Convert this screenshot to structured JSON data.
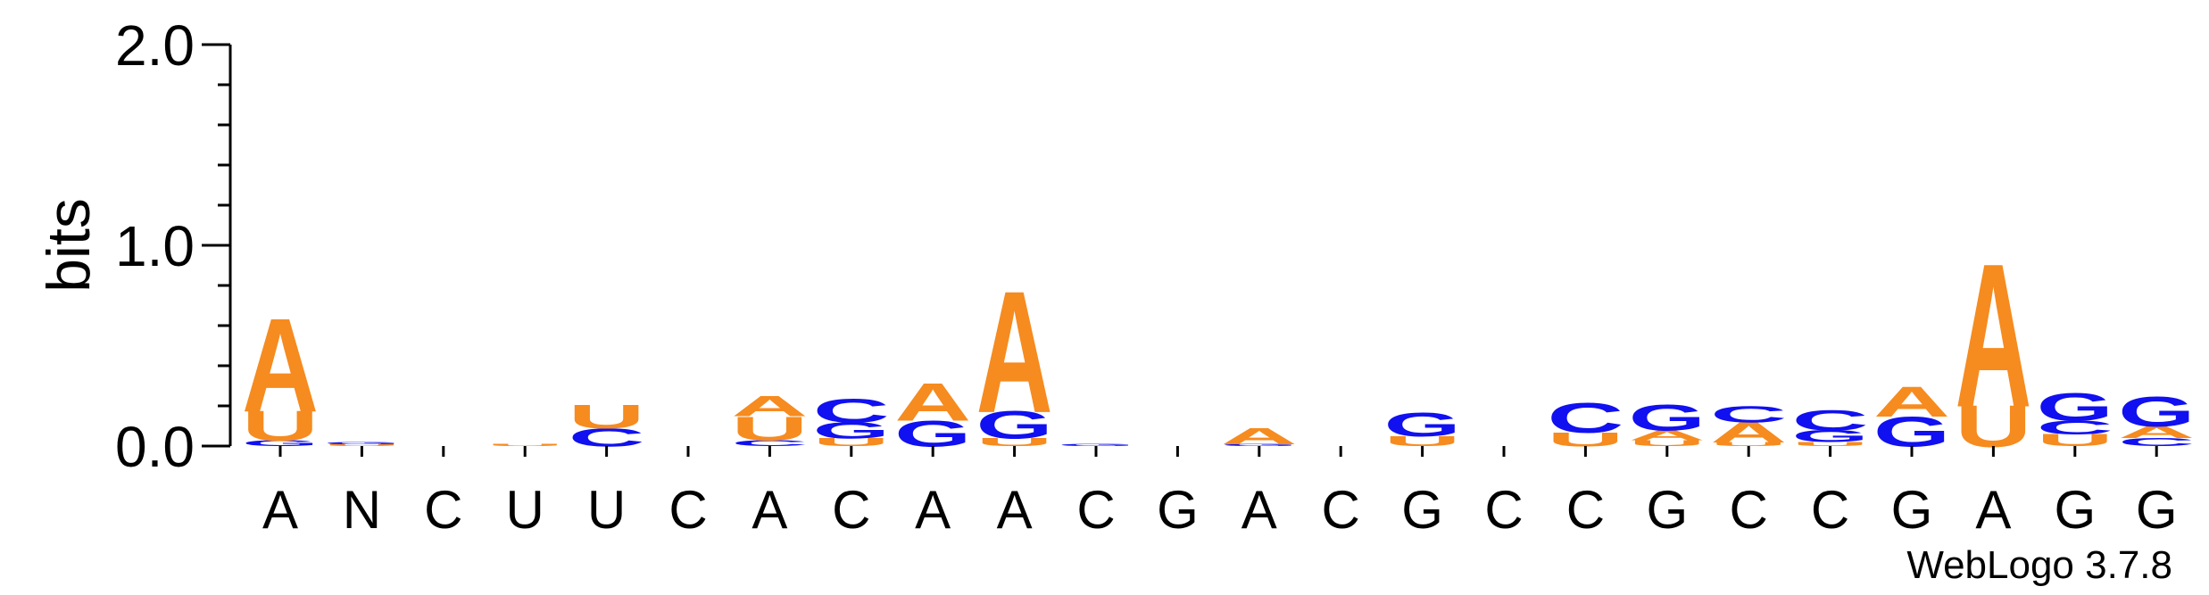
{
  "chart_data": {
    "type": "sequence-logo",
    "ylabel": "bits",
    "ylim": [
      0,
      2.0
    ],
    "y_ticks": [
      "0.0",
      "1.0",
      "2.0"
    ],
    "footer": "WebLogo 3.7.8",
    "colors": {
      "A": "#f68b1f",
      "U": "#f68b1f",
      "C": "#1010f0",
      "G": "#1010f0",
      "N": "#f68b1f"
    },
    "positions": [
      {
        "label": "A",
        "stack": [
          {
            "letter": "G",
            "bits": 0.03
          },
          {
            "letter": "U",
            "bits": 0.15
          },
          {
            "letter": "A",
            "bits": 0.47
          }
        ]
      },
      {
        "label": "N",
        "stack": [
          {
            "letter": "U",
            "bits": 0.01
          },
          {
            "letter": "G",
            "bits": 0.01
          }
        ]
      },
      {
        "label": "C",
        "stack": []
      },
      {
        "label": "U",
        "stack": [
          {
            "letter": "U",
            "bits": 0.01
          }
        ]
      },
      {
        "label": "U",
        "stack": [
          {
            "letter": "C",
            "bits": 0.09
          },
          {
            "letter": "U",
            "bits": 0.12
          }
        ]
      },
      {
        "label": "C",
        "stack": []
      },
      {
        "label": "A",
        "stack": [
          {
            "letter": "C",
            "bits": 0.03
          },
          {
            "letter": "U",
            "bits": 0.12
          },
          {
            "letter": "A",
            "bits": 0.1
          }
        ]
      },
      {
        "label": "C",
        "stack": [
          {
            "letter": "U",
            "bits": 0.04
          },
          {
            "letter": "G",
            "bits": 0.08
          },
          {
            "letter": "C",
            "bits": 0.12
          }
        ]
      },
      {
        "label": "A",
        "stack": [
          {
            "letter": "G",
            "bits": 0.13
          },
          {
            "letter": "A",
            "bits": 0.19
          }
        ]
      },
      {
        "label": "A",
        "stack": [
          {
            "letter": "U",
            "bits": 0.04
          },
          {
            "letter": "G",
            "bits": 0.14
          },
          {
            "letter": "A",
            "bits": 0.61
          }
        ]
      },
      {
        "label": "C",
        "stack": [
          {
            "letter": "G",
            "bits": 0.01
          }
        ]
      },
      {
        "label": "G",
        "stack": []
      },
      {
        "label": "A",
        "stack": [
          {
            "letter": "G",
            "bits": 0.01
          },
          {
            "letter": "A",
            "bits": 0.08
          }
        ]
      },
      {
        "label": "C",
        "stack": []
      },
      {
        "label": "G",
        "stack": [
          {
            "letter": "U",
            "bits": 0.05
          },
          {
            "letter": "G",
            "bits": 0.12
          }
        ]
      },
      {
        "label": "C",
        "stack": []
      },
      {
        "label": "C",
        "stack": [
          {
            "letter": "U",
            "bits": 0.07
          },
          {
            "letter": "C",
            "bits": 0.15
          }
        ]
      },
      {
        "label": "G",
        "stack": [
          {
            "letter": "U",
            "bits": 0.03
          },
          {
            "letter": "A",
            "bits": 0.05
          },
          {
            "letter": "G",
            "bits": 0.13
          }
        ]
      },
      {
        "label": "C",
        "stack": [
          {
            "letter": "U",
            "bits": 0.02
          },
          {
            "letter": "A",
            "bits": 0.1
          },
          {
            "letter": "C",
            "bits": 0.08
          }
        ]
      },
      {
        "label": "C",
        "stack": [
          {
            "letter": "U",
            "bits": 0.02
          },
          {
            "letter": "G",
            "bits": 0.06
          },
          {
            "letter": "C",
            "bits": 0.1
          }
        ]
      },
      {
        "label": "G",
        "stack": [
          {
            "letter": "G",
            "bits": 0.15
          },
          {
            "letter": "A",
            "bits": 0.15
          }
        ]
      },
      {
        "label": "A",
        "stack": [
          {
            "letter": "U",
            "bits": 0.21
          },
          {
            "letter": "A",
            "bits": 0.72
          }
        ]
      },
      {
        "label": "G",
        "stack": [
          {
            "letter": "U",
            "bits": 0.06
          },
          {
            "letter": "C",
            "bits": 0.07
          },
          {
            "letter": "G",
            "bits": 0.14
          }
        ]
      },
      {
        "label": "G",
        "stack": [
          {
            "letter": "C",
            "bits": 0.04
          },
          {
            "letter": "A",
            "bits": 0.06
          },
          {
            "letter": "G",
            "bits": 0.15
          }
        ]
      }
    ]
  }
}
